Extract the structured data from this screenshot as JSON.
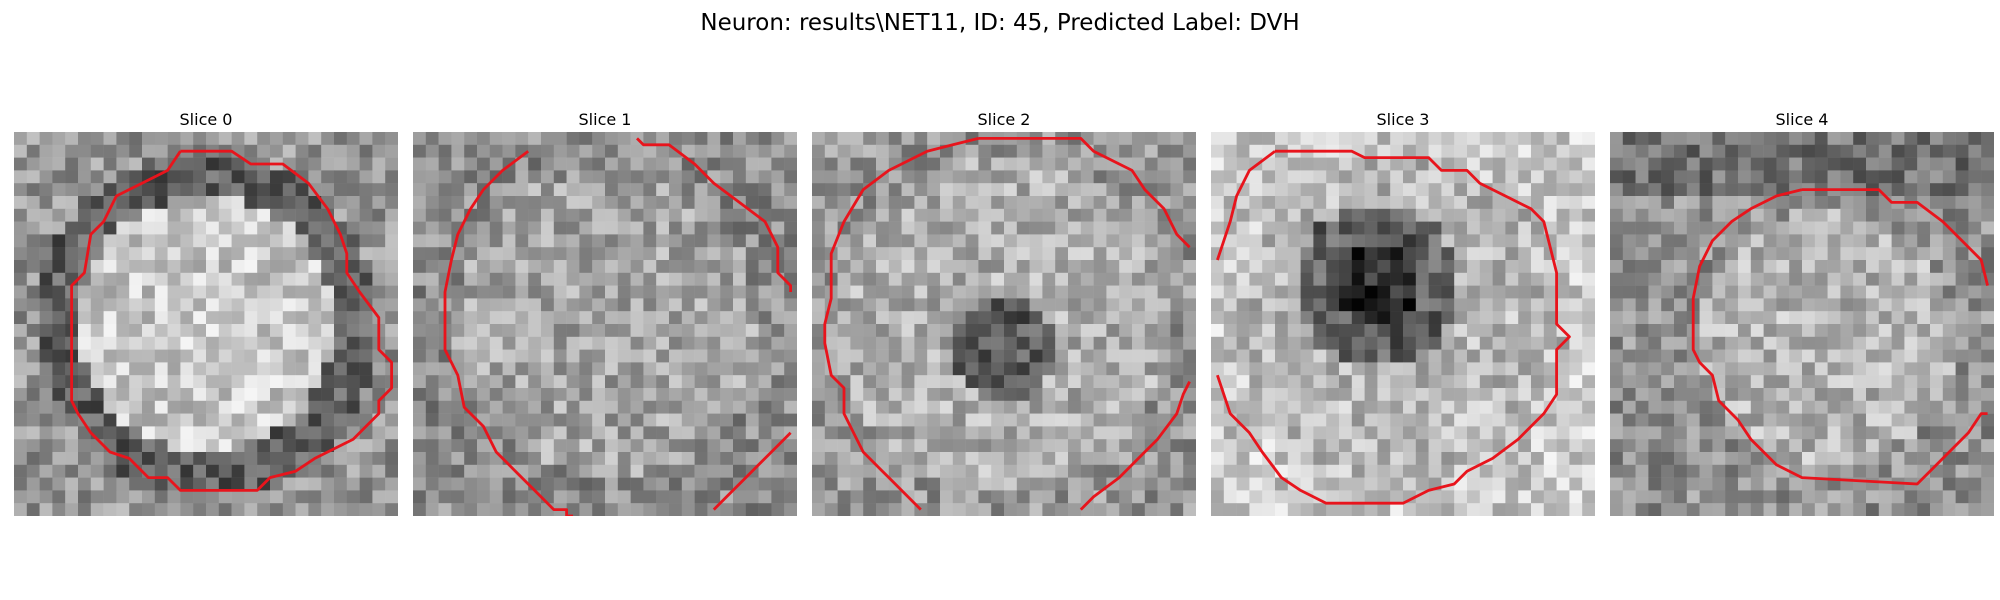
{
  "figure": {
    "title": "Neuron: results\\NET11, ID: 45, Predicted Label: DVH"
  },
  "colors": {
    "contour": "#e8141c",
    "background": "#ffffff",
    "text": "#000000"
  },
  "panels": [
    {
      "title": "Slice 0",
      "pattern": "bright-disk-dark-ring",
      "contour": [
        [
          13,
          1.5
        ],
        [
          17,
          1.5
        ],
        [
          18.5,
          2.5
        ],
        [
          21,
          2.5
        ],
        [
          23,
          4
        ],
        [
          24.5,
          6
        ],
        [
          25.5,
          8
        ],
        [
          26,
          9.5
        ],
        [
          26,
          11
        ],
        [
          27,
          12.5
        ],
        [
          28.5,
          14.5
        ],
        [
          28.5,
          17
        ],
        [
          29.5,
          18
        ],
        [
          29.5,
          20
        ],
        [
          28.5,
          21
        ],
        [
          28.5,
          22
        ],
        [
          27.5,
          23
        ],
        [
          26.5,
          24
        ],
        [
          25.5,
          24.5
        ],
        [
          23.5,
          25.5
        ],
        [
          22,
          26.5
        ],
        [
          20,
          27
        ],
        [
          19,
          28
        ],
        [
          13,
          28
        ],
        [
          12,
          27
        ],
        [
          10.5,
          27
        ],
        [
          9,
          25.5
        ],
        [
          7.5,
          25
        ],
        [
          6,
          23.5
        ],
        [
          5,
          22
        ],
        [
          4.5,
          21
        ],
        [
          4.5,
          12
        ],
        [
          5.5,
          11
        ],
        [
          6,
          8
        ],
        [
          7,
          7
        ],
        [
          8,
          5
        ],
        [
          10,
          4
        ],
        [
          12,
          3
        ],
        [
          13,
          1.5
        ]
      ],
      "closed": false
    },
    {
      "title": "Slice 1",
      "pattern": "mottled-mid-gray",
      "contour": [
        [
          9,
          1.5
        ],
        [
          7,
          3
        ],
        [
          5.5,
          4.5
        ],
        [
          4.5,
          6
        ],
        [
          3.5,
          8
        ],
        [
          3,
          10
        ],
        [
          2.5,
          12.5
        ],
        [
          2.5,
          17
        ],
        [
          3.5,
          19
        ],
        [
          4,
          21.5
        ],
        [
          5.5,
          23
        ],
        [
          6.5,
          25
        ],
        [
          8,
          26.5
        ],
        [
          9.5,
          28
        ],
        [
          11,
          29.5
        ],
        [
          12,
          29.5
        ],
        [
          12,
          30
        ],
        [
          12.5,
          30
        ]
      ],
      "contour_b": [
        [
          17.5,
          0.5
        ],
        [
          18,
          1
        ],
        [
          20,
          1
        ],
        [
          22,
          2.5
        ],
        [
          23.5,
          4
        ],
        [
          25.5,
          5.5
        ],
        [
          27.5,
          7
        ],
        [
          28,
          8
        ],
        [
          28.5,
          9
        ],
        [
          28.5,
          11
        ],
        [
          29.5,
          12
        ],
        [
          29.5,
          12.5
        ]
      ],
      "contour_c": [
        [
          23.5,
          29.5
        ],
        [
          24.5,
          28.5
        ],
        [
          25,
          28
        ],
        [
          26,
          27
        ],
        [
          27,
          26
        ],
        [
          28,
          25
        ],
        [
          28.5,
          24.5
        ],
        [
          29.5,
          23.5
        ]
      ],
      "closed": false
    },
    {
      "title": "Slice 2",
      "pattern": "faint-dark-center",
      "contour": [
        [
          13,
          0.5
        ],
        [
          21,
          0.5
        ],
        [
          22,
          1.5
        ],
        [
          23,
          2
        ],
        [
          25,
          3
        ],
        [
          26,
          4.5
        ],
        [
          27.5,
          6
        ],
        [
          28.5,
          8
        ],
        [
          29.5,
          9
        ]
      ],
      "contour_b": [
        [
          13,
          0.5
        ],
        [
          11,
          1
        ],
        [
          9,
          1.5
        ],
        [
          6,
          3
        ],
        [
          4,
          4.5
        ],
        [
          2.5,
          7
        ],
        [
          1.5,
          9.5
        ],
        [
          1.5,
          13
        ],
        [
          1,
          15
        ],
        [
          1,
          16.5
        ],
        [
          1.5,
          19
        ],
        [
          2.5,
          20
        ],
        [
          2.5,
          22
        ],
        [
          3.5,
          24
        ],
        [
          4,
          25
        ],
        [
          5.5,
          26.5
        ],
        [
          7,
          28
        ],
        [
          8.5,
          29.5
        ]
      ],
      "contour_c": [
        [
          21,
          29.5
        ],
        [
          22,
          28.5
        ],
        [
          24,
          27
        ],
        [
          25.5,
          25.5
        ],
        [
          27,
          24
        ],
        [
          28.5,
          22
        ],
        [
          29,
          20.5
        ],
        [
          29.5,
          19.5
        ]
      ],
      "closed": false
    },
    {
      "title": "Slice 3",
      "pattern": "dark-center-blob",
      "contour": [
        [
          5,
          1.5
        ],
        [
          11,
          1.5
        ],
        [
          12,
          2
        ],
        [
          17,
          2
        ],
        [
          18,
          3
        ],
        [
          20,
          3
        ],
        [
          21,
          4
        ],
        [
          23,
          5
        ],
        [
          25,
          6
        ],
        [
          26,
          7
        ],
        [
          26.5,
          9
        ],
        [
          27,
          11
        ],
        [
          27,
          15
        ],
        [
          28,
          16
        ],
        [
          27,
          17
        ],
        [
          27,
          20.5
        ],
        [
          26,
          22
        ],
        [
          25,
          23
        ],
        [
          24,
          24
        ],
        [
          22,
          25.5
        ],
        [
          20,
          26.5
        ],
        [
          19,
          27.5
        ],
        [
          17,
          28
        ],
        [
          15,
          29
        ],
        [
          9,
          29
        ],
        [
          7,
          28
        ],
        [
          5.5,
          27
        ],
        [
          4,
          25
        ],
        [
          3,
          23.5
        ],
        [
          1.5,
          22
        ],
        [
          0.5,
          19
        ]
      ],
      "contour_b": [
        [
          5,
          1.5
        ],
        [
          3,
          3
        ],
        [
          2,
          5
        ],
        [
          1.5,
          7
        ],
        [
          1,
          8.5
        ],
        [
          0.5,
          10
        ]
      ],
      "closed": false
    },
    {
      "title": "Slice 4",
      "pattern": "faint-disk-lower",
      "contour": [
        [
          15,
          4.5
        ],
        [
          21,
          4.5
        ],
        [
          22,
          5.5
        ],
        [
          24,
          5.5
        ],
        [
          26,
          7
        ],
        [
          27.5,
          8.5
        ],
        [
          29,
          10
        ],
        [
          29.5,
          12
        ]
      ],
      "contour_b": [
        [
          15,
          4.5
        ],
        [
          13,
          5
        ],
        [
          11,
          6
        ],
        [
          9.5,
          7
        ],
        [
          8,
          8.5
        ],
        [
          7,
          10.5
        ],
        [
          6.5,
          13
        ],
        [
          6.5,
          17
        ],
        [
          7,
          18
        ],
        [
          8,
          19
        ],
        [
          8.5,
          21
        ],
        [
          10,
          22.5
        ],
        [
          11,
          24
        ],
        [
          12,
          25
        ],
        [
          13,
          26
        ],
        [
          15,
          27
        ],
        [
          24,
          27.5
        ],
        [
          25,
          26.5
        ],
        [
          26.5,
          25
        ],
        [
          28,
          23.5
        ],
        [
          29,
          22
        ],
        [
          29.5,
          22
        ]
      ],
      "closed": false
    }
  ]
}
